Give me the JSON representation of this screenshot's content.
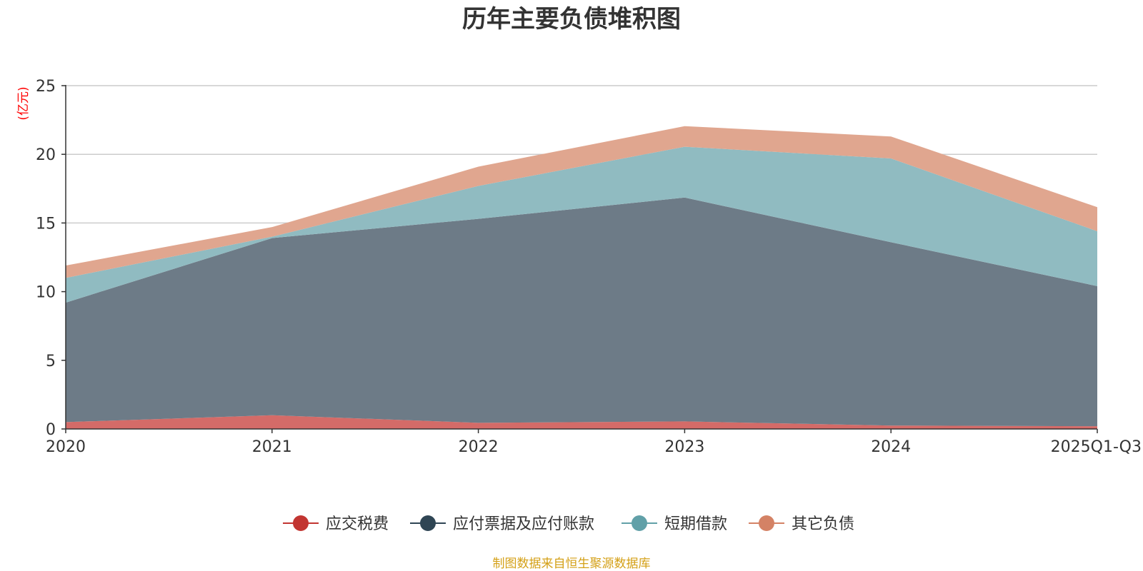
{
  "chart_data": {
    "type": "area",
    "stacked": true,
    "title": "历年主要负债堆积图",
    "ylabel": "(亿元)",
    "xlabel": "",
    "categories": [
      "2020",
      "2021",
      "2022",
      "2023",
      "2024",
      "2025Q1-Q3"
    ],
    "ylim": [
      0,
      25
    ],
    "yticks": [
      0,
      5,
      10,
      15,
      20,
      25
    ],
    "grid": true,
    "legend_position": "bottom",
    "series": [
      {
        "name": "应交税费",
        "color": "#c23531",
        "fill": "#d46b68",
        "values": [
          0.5,
          1.0,
          0.45,
          0.55,
          0.25,
          0.2
        ]
      },
      {
        "name": "应付票据及应付账款",
        "color": "#2f4554",
        "fill": "#6d7b87",
        "values": [
          8.7,
          12.9,
          14.85,
          16.3,
          13.35,
          10.2
        ]
      },
      {
        "name": "短期借款",
        "color": "#61a0a8",
        "fill": "#90bbc1",
        "values": [
          1.8,
          0.1,
          2.4,
          3.7,
          6.1,
          4.0
        ]
      },
      {
        "name": "其它负债",
        "color": "#d48265",
        "fill": "#e0a68f",
        "values": [
          0.9,
          0.7,
          1.4,
          1.5,
          1.6,
          1.75
        ]
      }
    ],
    "source": "制图数据来自恒生聚源数据库",
    "source_color": "#d4a017",
    "unit_color": "#ff0000"
  }
}
